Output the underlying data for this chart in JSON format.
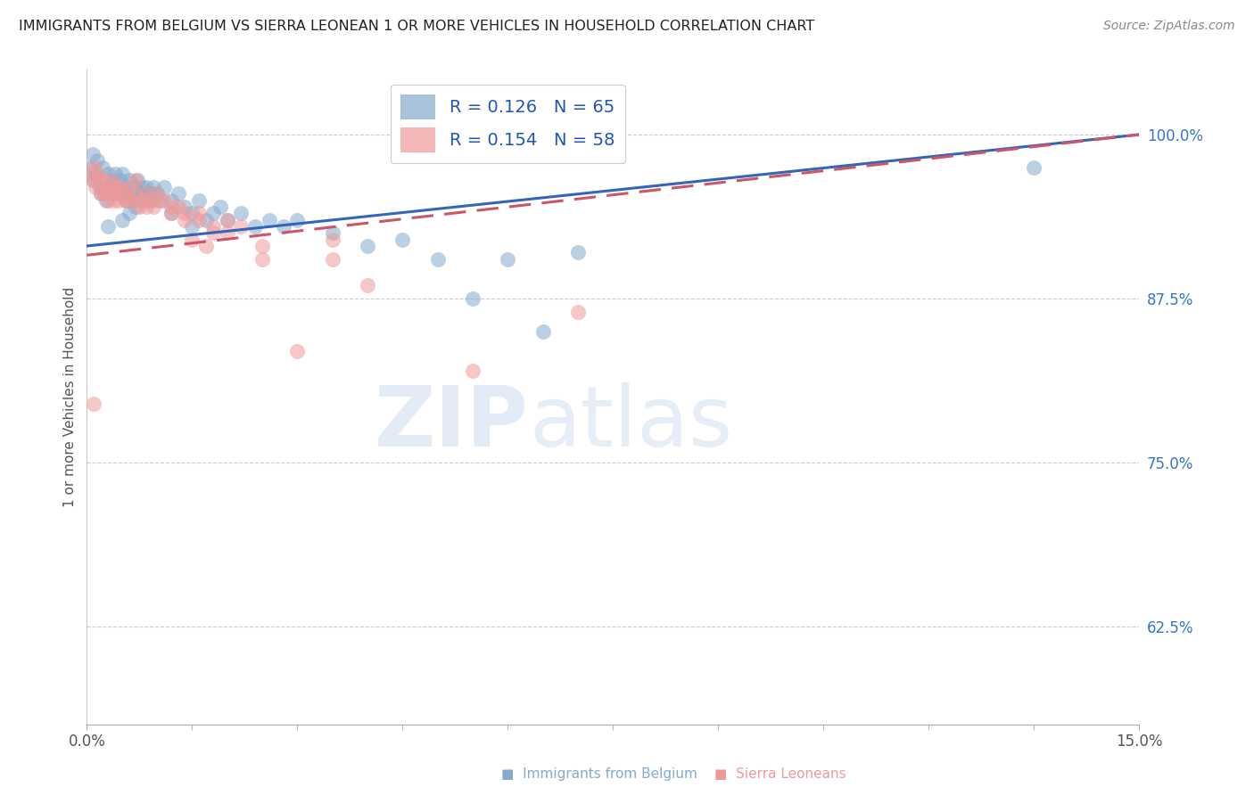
{
  "title": "IMMIGRANTS FROM BELGIUM VS SIERRA LEONEAN 1 OR MORE VEHICLES IN HOUSEHOLD CORRELATION CHART",
  "source": "Source: ZipAtlas.com",
  "ylabel": "1 or more Vehicles in Household",
  "y_ticks": [
    62.5,
    75.0,
    87.5,
    100.0
  ],
  "y_tick_labels": [
    "62.5%",
    "75.0%",
    "87.5%",
    "100.0%"
  ],
  "x_range": [
    0.0,
    15.0
  ],
  "y_range": [
    55.0,
    105.0
  ],
  "legend1_label": "Immigrants from Belgium",
  "legend2_label": "Sierra Leoneans",
  "R_blue": 0.126,
  "N_blue": 65,
  "R_pink": 0.154,
  "N_pink": 58,
  "blue_color": "#85AACC",
  "pink_color": "#EE9999",
  "blue_line_color": "#3366BB",
  "pink_line_color": "#CC5566",
  "blue_scatter_x": [
    0.05,
    0.08,
    0.1,
    0.12,
    0.15,
    0.18,
    0.2,
    0.22,
    0.25,
    0.28,
    0.3,
    0.35,
    0.38,
    0.4,
    0.42,
    0.45,
    0.48,
    0.5,
    0.52,
    0.55,
    0.58,
    0.6,
    0.65,
    0.68,
    0.7,
    0.72,
    0.75,
    0.78,
    0.8,
    0.85,
    0.9,
    0.95,
    1.0,
    1.05,
    1.1,
    1.2,
    1.3,
    1.4,
    1.5,
    1.6,
    1.7,
    1.8,
    1.9,
    2.0,
    2.2,
    2.4,
    2.6,
    2.8,
    3.0,
    3.5,
    4.0,
    4.5,
    5.0,
    5.5,
    6.0,
    6.5,
    7.0,
    0.3,
    0.5,
    0.6,
    0.7,
    0.9,
    1.2,
    1.5,
    13.5
  ],
  "blue_scatter_y": [
    97.5,
    98.5,
    96.5,
    97.0,
    98.0,
    96.0,
    95.5,
    97.5,
    96.0,
    95.0,
    97.0,
    96.5,
    95.5,
    97.0,
    96.0,
    95.5,
    96.5,
    97.0,
    95.5,
    96.0,
    95.0,
    96.5,
    95.5,
    96.0,
    95.0,
    96.5,
    95.5,
    96.0,
    95.5,
    96.0,
    95.5,
    96.0,
    95.5,
    95.0,
    96.0,
    95.0,
    95.5,
    94.5,
    94.0,
    95.0,
    93.5,
    94.0,
    94.5,
    93.5,
    94.0,
    93.0,
    93.5,
    93.0,
    93.5,
    92.5,
    91.5,
    92.0,
    90.5,
    87.5,
    90.5,
    85.0,
    91.0,
    93.0,
    93.5,
    94.0,
    94.5,
    95.0,
    94.0,
    93.0,
    97.5
  ],
  "pink_scatter_x": [
    0.05,
    0.08,
    0.1,
    0.12,
    0.15,
    0.18,
    0.2,
    0.22,
    0.25,
    0.28,
    0.3,
    0.35,
    0.38,
    0.4,
    0.42,
    0.45,
    0.48,
    0.5,
    0.55,
    0.6,
    0.65,
    0.7,
    0.75,
    0.8,
    0.85,
    0.9,
    0.95,
    1.0,
    1.1,
    1.2,
    1.3,
    1.4,
    1.5,
    1.6,
    1.7,
    1.8,
    2.0,
    2.2,
    2.5,
    3.0,
    3.5,
    4.0,
    5.5,
    7.0,
    0.1,
    0.25,
    0.4,
    0.55,
    0.7,
    0.85,
    1.0,
    1.2,
    1.4,
    1.6,
    1.8,
    2.0,
    2.5,
    3.5
  ],
  "pink_scatter_y": [
    97.0,
    96.5,
    97.5,
    96.0,
    97.0,
    96.5,
    95.5,
    96.5,
    95.5,
    96.0,
    95.0,
    96.5,
    95.0,
    96.0,
    95.5,
    95.0,
    96.0,
    95.5,
    95.0,
    96.0,
    95.0,
    95.5,
    94.5,
    95.0,
    94.5,
    95.0,
    94.5,
    95.5,
    95.0,
    94.0,
    94.5,
    93.5,
    92.0,
    94.0,
    91.5,
    92.5,
    93.5,
    93.0,
    90.5,
    83.5,
    92.0,
    88.5,
    82.0,
    86.5,
    79.5,
    95.5,
    96.0,
    95.0,
    96.5,
    95.5,
    95.0,
    94.5,
    94.0,
    93.5,
    93.0,
    92.5,
    91.5,
    90.5
  ]
}
